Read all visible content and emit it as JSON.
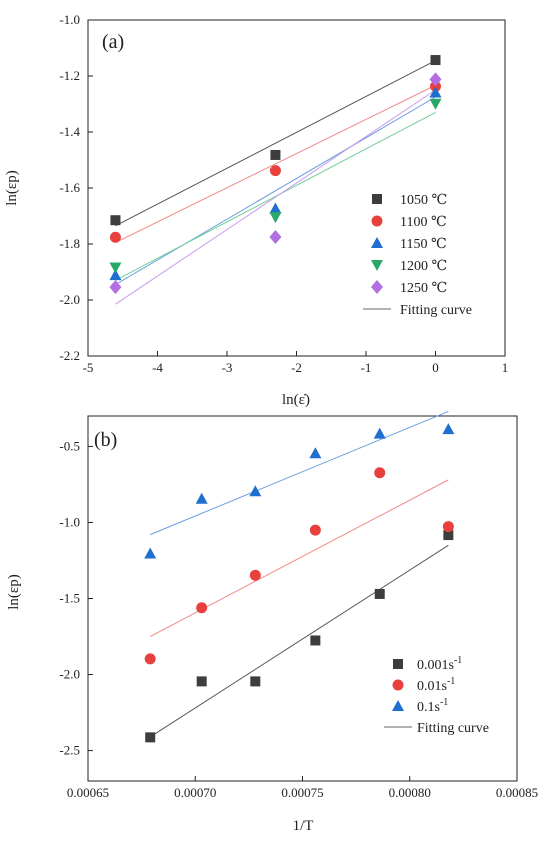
{
  "chart_data": [
    {
      "panel": "(a)",
      "type": "scatter",
      "xlabel": "ln(ε̇)",
      "ylabel": "ln(εp)",
      "xlim": [
        -5,
        1
      ],
      "ylim": [
        -2.2,
        -1.0
      ],
      "xticks": [
        -5,
        -4,
        -3,
        -2,
        -1,
        0,
        1
      ],
      "yticks": [
        -2.2,
        -2.0,
        -1.8,
        -1.6,
        -1.4,
        -1.2,
        -1.0
      ],
      "xtick_labels": [
        "-5",
        "-4",
        "-3",
        "-2",
        "-1",
        "0",
        "1"
      ],
      "ytick_labels": [
        "-2.2",
        "-2.0",
        "-1.8",
        "-1.6",
        "-1.4",
        "-1.2",
        "-1.0"
      ],
      "legend": "right",
      "fit_label": "Fitting curve",
      "series": [
        {
          "name": "1050 ℃",
          "marker": "square",
          "color": "#3d3d3d",
          "x": [
            -4.605,
            -2.303,
            0.0
          ],
          "y": [
            -1.715,
            -1.482,
            -1.143
          ],
          "fit": {
            "x": [
              -4.605,
              0.0
            ],
            "y": [
              -1.735,
              -1.145
            ]
          }
        },
        {
          "name": "1100 ℃",
          "marker": "circle",
          "color": "#e8403d",
          "x": [
            -4.605,
            -2.303,
            0.0
          ],
          "y": [
            -1.776,
            -1.538,
            -1.237
          ],
          "fit": {
            "x": [
              -4.605,
              0.0
            ],
            "y": [
              -1.795,
              -1.233
            ]
          }
        },
        {
          "name": "1150 ℃",
          "marker": "triangle-up",
          "color": "#1f6fcf",
          "x": [
            -4.605,
            -2.303,
            0.0
          ],
          "y": [
            -1.911,
            -1.673,
            -1.259
          ],
          "fit": {
            "x": [
              -4.605,
              0.0
            ],
            "y": [
              -1.945,
              -1.275
            ]
          }
        },
        {
          "name": "1200 ℃",
          "marker": "triangle-down",
          "color": "#2aa86a",
          "x": [
            -4.605,
            -2.303,
            0.0
          ],
          "y": [
            -1.884,
            -1.704,
            -1.299
          ],
          "fit": {
            "x": [
              -4.605,
              0.0
            ],
            "y": [
              -1.93,
              -1.33
            ]
          }
        },
        {
          "name": "1250 ℃",
          "marker": "diamond",
          "color": "#b06ee0",
          "x": [
            -4.605,
            -2.303,
            0.0
          ],
          "y": [
            -1.954,
            -1.775,
            -1.212
          ],
          "fit": {
            "x": [
              -4.605,
              0.0
            ],
            "y": [
              -2.015,
              -1.25
            ]
          }
        }
      ]
    },
    {
      "panel": "(b)",
      "type": "scatter",
      "xlabel": "1/T",
      "ylabel": "ln(εp)",
      "xlim": [
        0.00065,
        0.00085
      ],
      "ylim": [
        -2.7,
        -0.3
      ],
      "xticks": [
        0.00065,
        0.0007,
        0.00075,
        0.0008,
        0.00085
      ],
      "yticks": [
        -2.5,
        -2.0,
        -1.5,
        -1.0,
        -0.5
      ],
      "xtick_labels": [
        "0.00065",
        "0.00070",
        "0.00075",
        "0.00080",
        "0.00085"
      ],
      "ytick_labels": [
        "-2.5",
        "-2.0",
        "-1.5",
        "-1.0",
        "-0.5"
      ],
      "legend": "bottom-right",
      "fit_label": "Fitting curve",
      "series": [
        {
          "name": "0.001s",
          "superscript": "-1",
          "marker": "square",
          "color": "#3d3d3d",
          "x": [
            0.000679,
            0.000703,
            0.000728,
            0.000756,
            0.000786,
            0.000818
          ],
          "y": [
            -2.413,
            -2.045,
            -2.045,
            -1.776,
            -1.47,
            -1.083
          ],
          "fit": {
            "x": [
              0.000679,
              0.000818
            ],
            "y": [
              -2.41,
              -1.15
            ]
          }
        },
        {
          "name": "0.01s",
          "superscript": "-1",
          "marker": "circle",
          "color": "#e8403d",
          "x": [
            0.000679,
            0.000703,
            0.000728,
            0.000756,
            0.000786,
            0.000818
          ],
          "y": [
            -1.897,
            -1.561,
            -1.347,
            -1.05,
            -0.673,
            -1.027
          ],
          "fit": {
            "x": [
              0.000679,
              0.000818
            ],
            "y": [
              -1.75,
              -0.72
            ]
          }
        },
        {
          "name": "0.1s",
          "superscript": "-1",
          "marker": "triangle-up",
          "color": "#1f6fcf",
          "x": [
            0.000679,
            0.000703,
            0.000728,
            0.000756,
            0.000786,
            0.000818
          ],
          "y": [
            -1.204,
            -0.844,
            -0.795,
            -0.545,
            -0.416,
            -0.386
          ],
          "fit": {
            "x": [
              0.000679,
              0.000818
            ],
            "y": [
              -1.08,
              -0.27
            ]
          }
        }
      ]
    }
  ]
}
